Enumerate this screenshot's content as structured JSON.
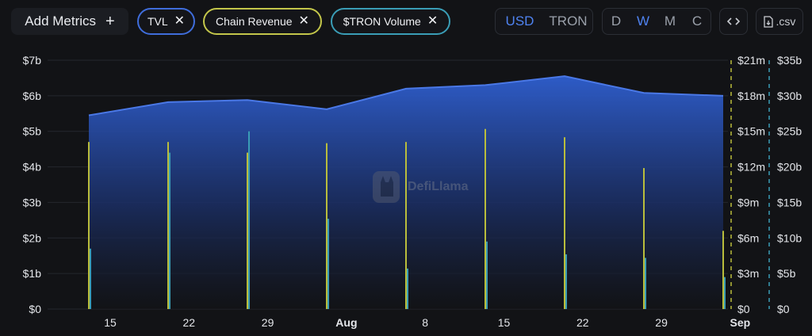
{
  "toolbar": {
    "add_metrics_label": "Add Metrics",
    "chips": [
      {
        "label": "TVL",
        "color": "#3f6ddb"
      },
      {
        "label": "Chain Revenue",
        "color": "#c3c64a"
      },
      {
        "label": "$TRON Volume",
        "color": "#3a9db6"
      }
    ],
    "currency": [
      "USD",
      "TRON"
    ],
    "currency_active": "USD",
    "periods": [
      "D",
      "W",
      "M",
      "C"
    ],
    "period_active": "W",
    "csv_label": ".csv"
  },
  "watermark": "DefiLlama",
  "chart_data": {
    "type": "area",
    "x_ticks": [
      "15",
      "22",
      "29",
      "Aug",
      "8",
      "15",
      "22",
      "29",
      "Sep"
    ],
    "x": [
      "Jul 13",
      "Jul 20",
      "Jul 27",
      "Aug 3",
      "Aug 10",
      "Aug 17",
      "Aug 24",
      "Aug 31",
      "Sep 7"
    ],
    "y_axes": [
      {
        "ticks": [
          "$0",
          "$1b",
          "$2b",
          "$3b",
          "$4b",
          "$5b",
          "$6b",
          "$7b"
        ],
        "range": [
          0,
          7000000000
        ]
      },
      {
        "ticks": [
          "$0",
          "$3m",
          "$6m",
          "$9m",
          "$12m",
          "$15m",
          "$18m",
          "$21m"
        ],
        "range": [
          0,
          21000000
        ]
      },
      {
        "ticks": [
          "$0",
          "$5b",
          "$10b",
          "$15b",
          "$20b",
          "$25b",
          "$30b",
          "$35b"
        ],
        "range": [
          0,
          35000000000
        ]
      }
    ],
    "series": [
      {
        "name": "TVL",
        "kind": "area",
        "axis": 0,
        "color": "#3f6ddb",
        "values": [
          5450000000.0,
          5820000000.0,
          5880000000.0,
          5620000000.0,
          6200000000.0,
          6300000000.0,
          6550000000.0,
          6080000000.0,
          6000000000.0
        ]
      },
      {
        "name": "Chain Revenue",
        "kind": "bar",
        "axis": 1,
        "color": "#b9bd3c",
        "values": [
          14100000.0,
          14100000.0,
          13200000.0,
          14000000.0,
          14100000.0,
          15200000.0,
          14500000.0,
          11900000.0,
          6600000.0
        ]
      },
      {
        "name": "$TRON Volume",
        "kind": "bar",
        "axis": 2,
        "color": "#3a9db6",
        "values": [
          8500000000.0,
          22000000000.0,
          25000000000.0,
          12700000000.0,
          5700000000.0,
          9500000000.0,
          7700000000.0,
          7200000000.0,
          4500000000.0
        ]
      }
    ],
    "grid": true
  }
}
